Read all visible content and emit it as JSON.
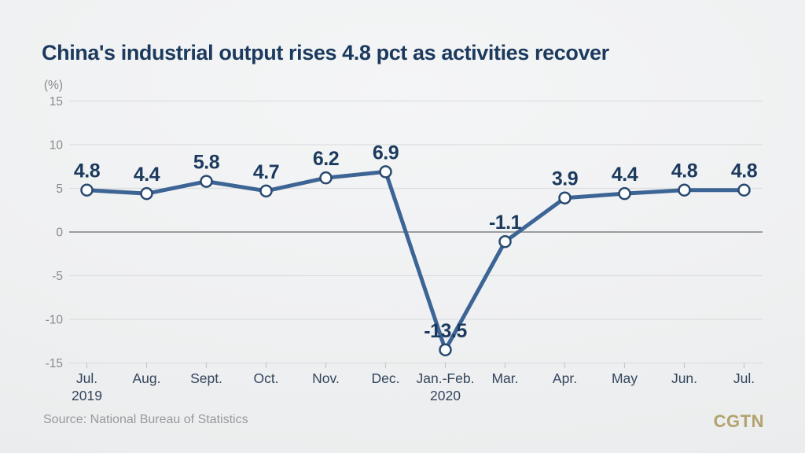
{
  "page": {
    "title": "China's industrial output rises 4.8 pct as activities recover",
    "source": "Source: National Bureau of Statistics",
    "logo": "CGTN"
  },
  "chart_data": {
    "type": "line",
    "title": "China's industrial output rises 4.8 pct as activities recover",
    "unit_label": "(%)",
    "categories": [
      {
        "label": "Jul.",
        "sublabel": "2019"
      },
      {
        "label": "Aug.",
        "sublabel": ""
      },
      {
        "label": "Sept.",
        "sublabel": ""
      },
      {
        "label": "Oct.",
        "sublabel": ""
      },
      {
        "label": "Nov.",
        "sublabel": ""
      },
      {
        "label": "Dec.",
        "sublabel": ""
      },
      {
        "label": "Jan.-Feb.",
        "sublabel": "2020"
      },
      {
        "label": "Mar.",
        "sublabel": ""
      },
      {
        "label": "Apr.",
        "sublabel": ""
      },
      {
        "label": "May",
        "sublabel": ""
      },
      {
        "label": "Jun.",
        "sublabel": ""
      },
      {
        "label": "Jul.",
        "sublabel": ""
      }
    ],
    "values": [
      4.8,
      4.4,
      5.8,
      4.7,
      6.2,
      6.9,
      -13.5,
      -1.1,
      3.9,
      4.4,
      4.8,
      4.8
    ],
    "data_labels": [
      "4.8",
      "4.4",
      "5.8",
      "4.7",
      "6.2",
      "6.9",
      "-13.5",
      "-1.1",
      "3.9",
      "4.4",
      "4.8",
      "4.8"
    ],
    "y_ticks": [
      15,
      10,
      5,
      0,
      -5,
      -10,
      -15
    ],
    "ylim": [
      -15,
      15
    ],
    "grid": true,
    "legend": false,
    "xlabel": "",
    "ylabel": "(%)",
    "source": "Source: National Bureau of Statistics",
    "colors": {
      "line": "#3c6494",
      "marker_fill": "#fcfdfd",
      "marker_stroke": "#29496f",
      "value_label": "#1b3a5e",
      "y_axis_text": "#87898c",
      "x_axis_text": "#33455c",
      "gridline": "#dcdee0",
      "zero_line": "#9b9ea1",
      "tick_mark": "#c6c8ca",
      "title": "#1c3a5e"
    }
  }
}
